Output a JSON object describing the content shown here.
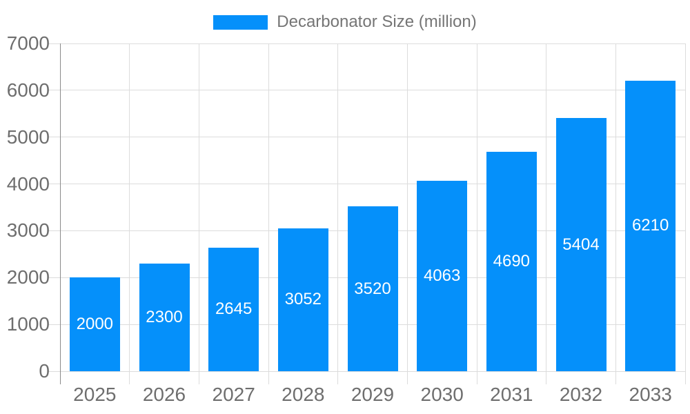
{
  "chart_data": {
    "type": "bar",
    "title": "",
    "legend": {
      "label": "Decarbonator Size (million)",
      "position": "top"
    },
    "categories": [
      "2025",
      "2026",
      "2027",
      "2028",
      "2029",
      "2030",
      "2031",
      "2032",
      "2033"
    ],
    "series": [
      {
        "name": "Decarbonator Size (million)",
        "values": [
          2000,
          2300,
          2645,
          3052,
          3520,
          4063,
          4690,
          5404,
          6210
        ]
      }
    ],
    "bar_labels": [
      2000,
      2300,
      2645,
      3052,
      3520,
      4063,
      4690,
      5404,
      6210
    ],
    "xlabel": "",
    "ylabel": "",
    "ylim": [
      0,
      7000
    ],
    "yticks": [
      0,
      1000,
      2000,
      3000,
      4000,
      5000,
      6000,
      7000
    ],
    "grid": true,
    "colors": {
      "bar": "#0590fa",
      "bar_label_text": "#ffffff",
      "gridline": "#dcdcdc",
      "axis_line": "#8a8a8a",
      "tick_label_text": "#6e6e6e",
      "legend_text": "#757575",
      "background": "#ffffff"
    }
  }
}
